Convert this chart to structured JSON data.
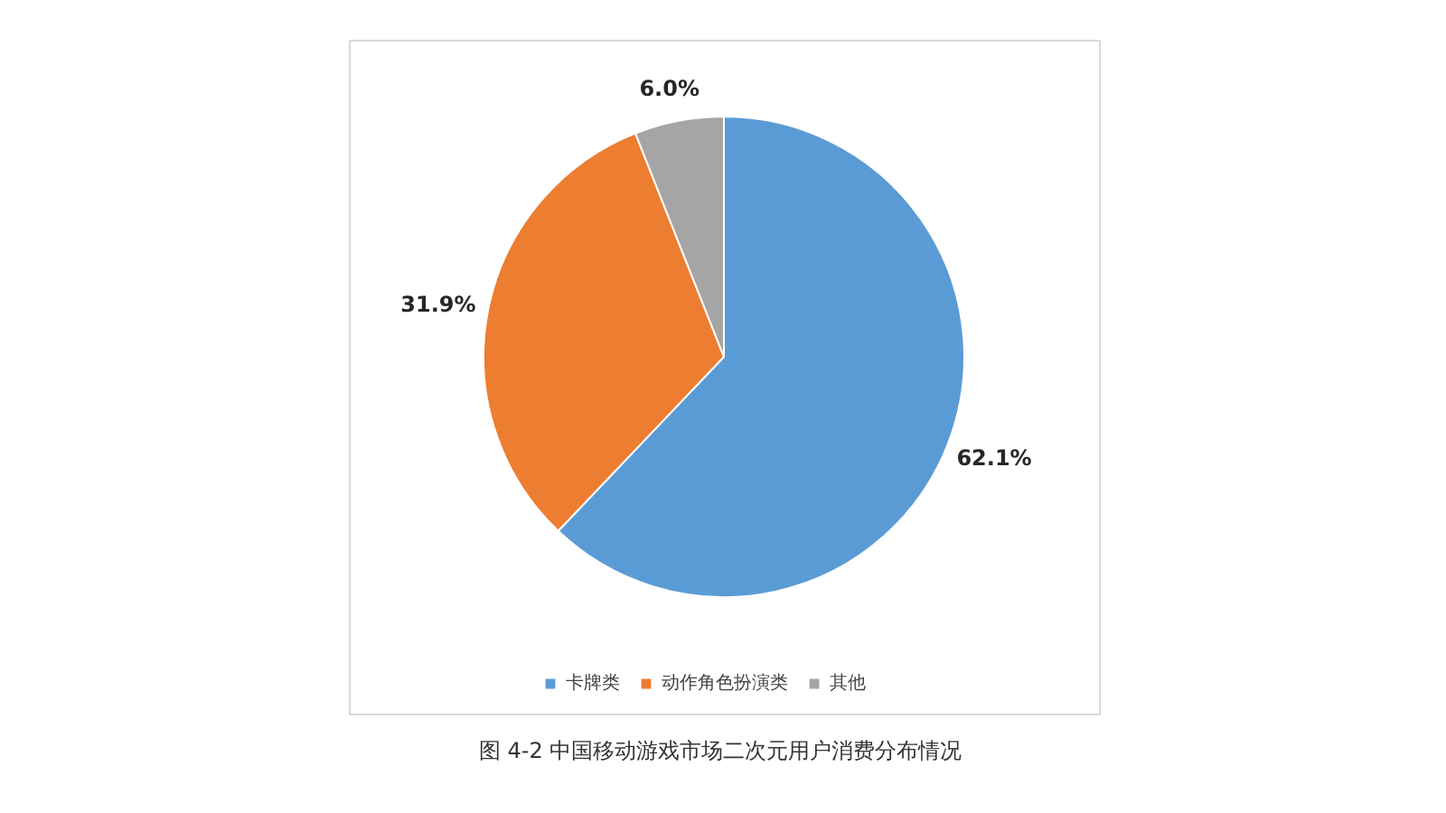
{
  "chart_data": {
    "type": "pie",
    "title": "图 4-2  中国移动游戏市场二次元用户消费分布情况",
    "categories": [
      "卡牌类",
      "动作角色扮演类",
      "其他"
    ],
    "values": [
      62.1,
      31.9,
      6.0
    ],
    "colors": [
      "#5b9bd5",
      "#ed7d31",
      "#a5a5a5"
    ],
    "value_labels": [
      "62.1%",
      "31.9%",
      "6.0%"
    ],
    "legend": "bottom"
  }
}
